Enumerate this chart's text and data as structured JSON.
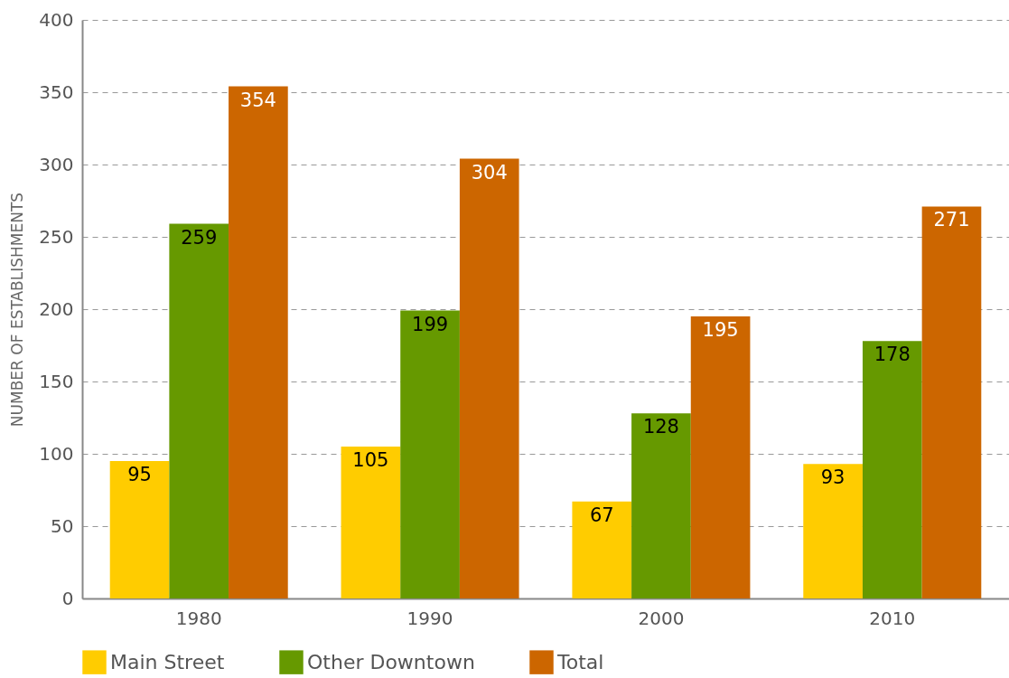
{
  "chart_data": {
    "type": "bar",
    "ylabel": "NUMBER OF ESTABLISHMENTS",
    "categories": [
      "1980",
      "1990",
      "2000",
      "2010"
    ],
    "series": [
      {
        "name": "Main Street",
        "color": "#ffcc00",
        "values": [
          95,
          105,
          67,
          93
        ]
      },
      {
        "name": "Other Downtown",
        "color": "#669900",
        "values": [
          259,
          199,
          128,
          178
        ]
      },
      {
        "name": "Total",
        "color": "#cc6600",
        "values": [
          354,
          304,
          195,
          271
        ]
      }
    ],
    "ylim": [
      0,
      400
    ],
    "yticks": [
      0,
      50,
      100,
      150,
      200,
      250,
      300,
      350,
      400
    ],
    "grid": "y",
    "legend": "bottom",
    "data_labels": true
  }
}
